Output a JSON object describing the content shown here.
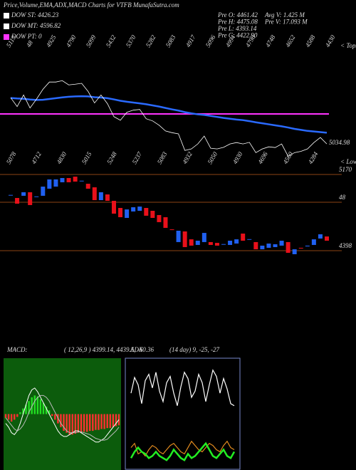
{
  "title": "Price,Volume,EMA,ADX,MACD Charts for VTFB MunafaSutra.com",
  "legend": [
    {
      "label": "DOW ST: 4426.23",
      "color": "#ffffff"
    },
    {
      "label": "DOW MT: 4596.82",
      "color": "#ffffff"
    },
    {
      "label": "DOW PT: 0",
      "color": "#ff33ff"
    }
  ],
  "stats": [
    "Pre O: 4461.42",
    "Pre H: 4475.08",
    "Pre L: 4393.14",
    "Pre C: 4422.90"
  ],
  "volume_stats": [
    "Avg V: 1.425 M",
    "Pre V: 17.093 M"
  ],
  "chart_data": [
    {
      "type": "line",
      "ylim": [
        4300,
        5300
      ],
      "series": [
        {
          "color": "#2a6aff",
          "values": [
            4960,
            4955,
            4952,
            4945,
            4940,
            4942,
            4950,
            4958,
            4966,
            4972,
            4976,
            4978,
            4976,
            4968,
            4964,
            4958,
            4946,
            4932,
            4922,
            4914,
            4906,
            4897,
            4886,
            4874,
            4860,
            4846,
            4834,
            4818,
            4806,
            4796,
            4790,
            4780,
            4770,
            4760,
            4752,
            4744,
            4738,
            4728,
            4716,
            4706,
            4696,
            4686,
            4676,
            4664,
            4650,
            4640,
            4630,
            4624,
            4618,
            4612
          ]
        }
      ],
      "price_color": "#ffffff",
      "hline": {
        "value": 4800,
        "color": "#ff33ff"
      },
      "top_labels": [
        "5113",
        "48",
        "4925",
        "4790",
        "5099",
        "5432",
        "5370",
        "5282",
        "5083",
        "4917",
        "5096",
        "4994",
        "4798",
        "4748",
        "4652",
        "4588",
        "4430"
      ],
      "bottom_labels": [
        "5078",
        "4712",
        "4830",
        "5015",
        "5248",
        "5237",
        "5083",
        "4932",
        "5050",
        "4930",
        "4696",
        "4560",
        "4284"
      ],
      "tops_label": "< Tops",
      "lows_label": "< Lows",
      "last_label": "5034.98"
    },
    {
      "type": "candlestick",
      "ylim": [
        3600,
        5300
      ],
      "yticks": [
        5170,
        {
          "value": 4889,
          "label": "48"
        },
        4398
      ],
      "grid_color": "#8b4513",
      "up_color": "#2060f0",
      "down_color": "#e8101a",
      "open": [
        4961,
        4932,
        4954,
        4990,
        4946,
        4954,
        5026,
        5047,
        5091,
        5134,
        5148,
        5105,
        5076,
        5040,
        4910,
        4968,
        4903,
        4831,
        4730,
        4795,
        4802,
        4831,
        4802,
        4759,
        4737,
        4614,
        4485,
        4593,
        4513,
        4456,
        4485,
        4485,
        4477,
        4463,
        4456,
        4470,
        4571,
        4513,
        4485,
        4412,
        4427,
        4434,
        4449,
        4485,
        4362,
        4427,
        4441,
        4456,
        4521,
        4542
      ],
      "close": [
        4963,
        4874,
        4990,
        4860,
        4948,
        5047,
        5120,
        5120,
        5134,
        5091,
        5098,
        5107,
        5026,
        4910,
        4990,
        4903,
        4773,
        4737,
        4816,
        4838,
        4845,
        4752,
        4730,
        4687,
        4629,
        4612,
        4600,
        4434,
        4449,
        4499,
        4578,
        4456,
        4449,
        4465,
        4499,
        4513,
        4499,
        4515,
        4412,
        4449,
        4470,
        4463,
        4499,
        4376,
        4412,
        4425,
        4449,
        4513,
        4564,
        4499
      ]
    },
    {
      "type": "macd",
      "title": "MACD:",
      "subtitle": "( 12,26,9 ) 4399.14, 4439.5, -60.36",
      "ylim": [
        -60,
        60
      ],
      "up_color": "#22dd22",
      "down_color": "#ff3030",
      "histogram": [
        -4,
        -6,
        -8,
        -6,
        -3,
        2,
        6,
        10,
        14,
        18,
        20,
        19,
        16,
        12,
        8,
        4,
        -2,
        -6,
        -10,
        -14,
        -18,
        -20,
        -22,
        -22,
        -21,
        -20,
        -20,
        -19,
        -19,
        -18,
        -18,
        -17,
        -17,
        -16,
        -16,
        -15,
        -15,
        -14,
        -13,
        -12
      ],
      "series": [
        {
          "color": "#ffffff",
          "values": [
            -10,
            -14,
            -20,
            -22,
            -18,
            -10,
            0,
            10,
            20,
            26,
            28,
            24,
            18,
            12,
            6,
            0,
            -6,
            -12,
            -18,
            -22,
            -24,
            -24,
            -22,
            -20,
            -18,
            -18,
            -20,
            -22,
            -24,
            -26,
            -28,
            -30,
            -30,
            -28,
            -26,
            -22,
            -18,
            -14,
            -10,
            -6
          ]
        },
        {
          "color": "#bbbbbb",
          "values": [
            -4,
            -8,
            -12,
            -16,
            -18,
            -16,
            -12,
            -6,
            2,
            8,
            14,
            18,
            20,
            20,
            18,
            14,
            8,
            2,
            -4,
            -10,
            -14,
            -18,
            -20,
            -20,
            -20,
            -19,
            -19,
            -20,
            -21,
            -22,
            -24,
            -26,
            -27,
            -28,
            -28,
            -27,
            -24,
            -21,
            -18,
            -14
          ]
        }
      ]
    },
    {
      "type": "adx",
      "title": "ADX",
      "subtitle": "(14 day) 9, -25, -27",
      "ylim": [
        0,
        100
      ],
      "series": [
        {
          "color": "#ffffff",
          "values": [
            70,
            85,
            78,
            60,
            82,
            88,
            75,
            90,
            72,
            62,
            80,
            86,
            70,
            58,
            76,
            90,
            84,
            66,
            72,
            88,
            80,
            62,
            78,
            92,
            86,
            70,
            84,
            74,
            60,
            58
          ]
        },
        {
          "color": "#e08a1e",
          "values": [
            18,
            22,
            12,
            14,
            10,
            16,
            20,
            18,
            14,
            12,
            16,
            20,
            22,
            18,
            14,
            12,
            18,
            24,
            20,
            16,
            14,
            18,
            22,
            20,
            16,
            14,
            20,
            24,
            18,
            16
          ]
        },
        {
          "color": "#22ee22",
          "values": [
            8,
            14,
            18,
            14,
            12,
            8,
            10,
            14,
            10,
            8,
            6,
            10,
            16,
            12,
            8,
            6,
            12,
            8,
            10,
            14,
            18,
            22,
            16,
            10,
            8,
            12,
            16,
            10,
            8,
            14
          ]
        }
      ]
    }
  ]
}
